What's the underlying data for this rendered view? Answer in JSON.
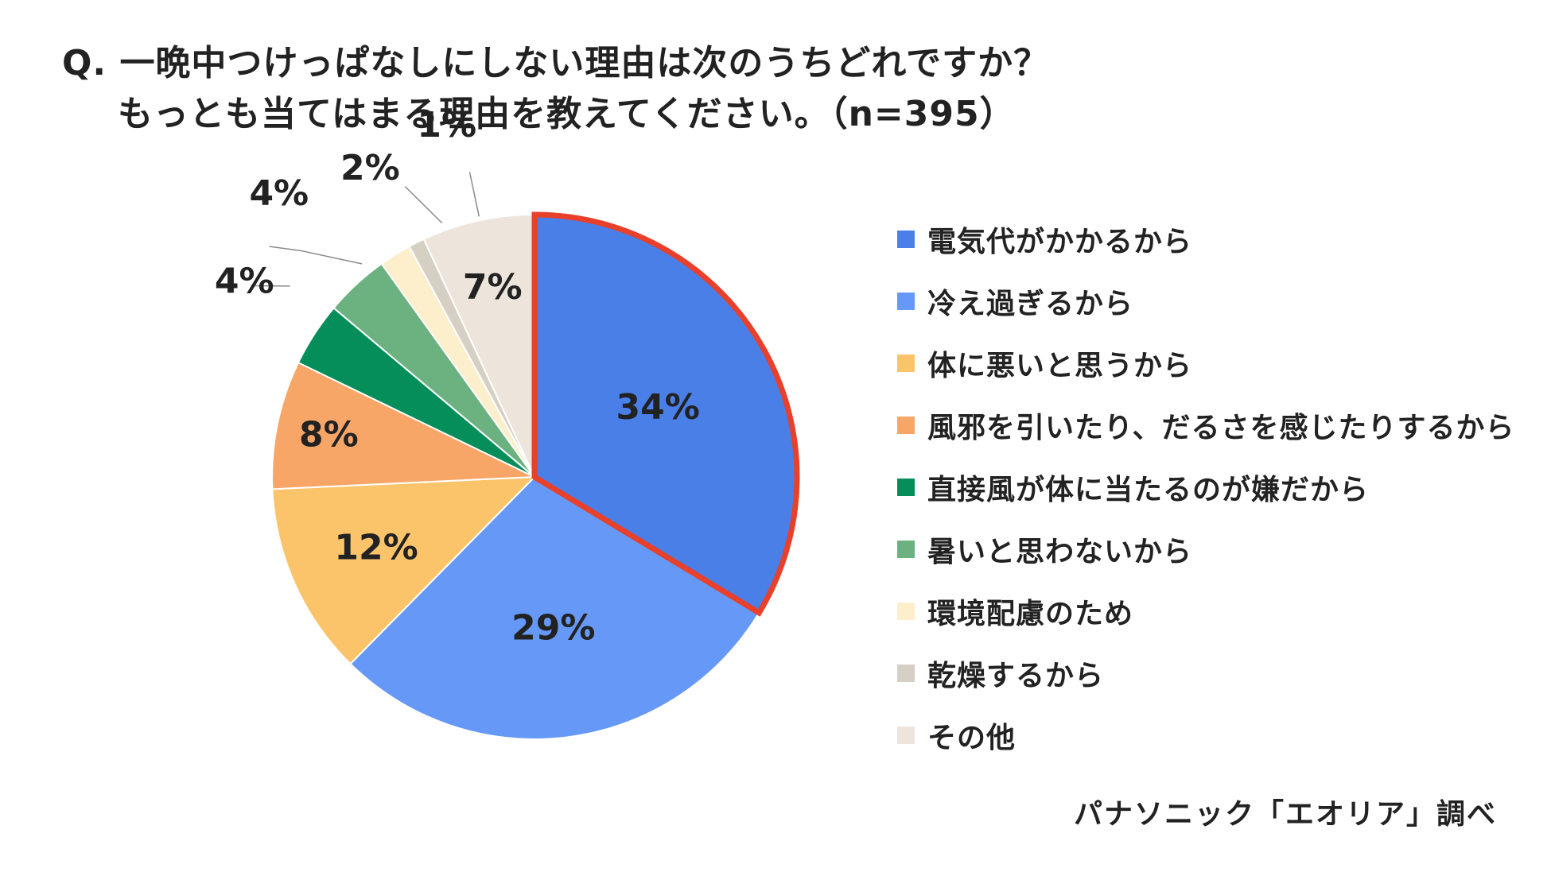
{
  "title": {
    "line1": "Q. 一晩中つけっぱなしにしない理由は次のうちどれですか？",
    "line2": "もっとも当てはまる理由を教えてください。（n=395）"
  },
  "source": "パナソニック「エオリア」調べ",
  "chart_data": {
    "type": "pie",
    "highlight_index": 0,
    "highlight_color": "#e8402a",
    "slices": [
      {
        "label": "電気代がかかるから",
        "value": 34,
        "value_label": "34%",
        "color": "#4a7fe8"
      },
      {
        "label": "冷え過ぎるから",
        "value": 29,
        "value_label": "29%",
        "color": "#6699f7"
      },
      {
        "label": "体に悪いと思うから",
        "value": 12,
        "value_label": "12%",
        "color": "#fcc46a"
      },
      {
        "label": "風邪を引いたり、だるさを感じたりするから",
        "value": 8,
        "value_label": "8%",
        "color": "#f8a668"
      },
      {
        "label": "直接風が体に当たるのが嫌だから",
        "value": 4,
        "value_label": "4%",
        "color": "#068e5a"
      },
      {
        "label": "暑いと思わないから",
        "value": 4,
        "value_label": "4%",
        "color": "#6cb281"
      },
      {
        "label": "環境配慮のため",
        "value": 2,
        "value_label": "2%",
        "color": "#fdefcc"
      },
      {
        "label": "乾燥するから",
        "value": 1,
        "value_label": "1%",
        "color": "#d6cfc4"
      },
      {
        "label": "その他",
        "value": 7,
        "value_label": "7%",
        "color": "#ede5dc"
      }
    ]
  }
}
